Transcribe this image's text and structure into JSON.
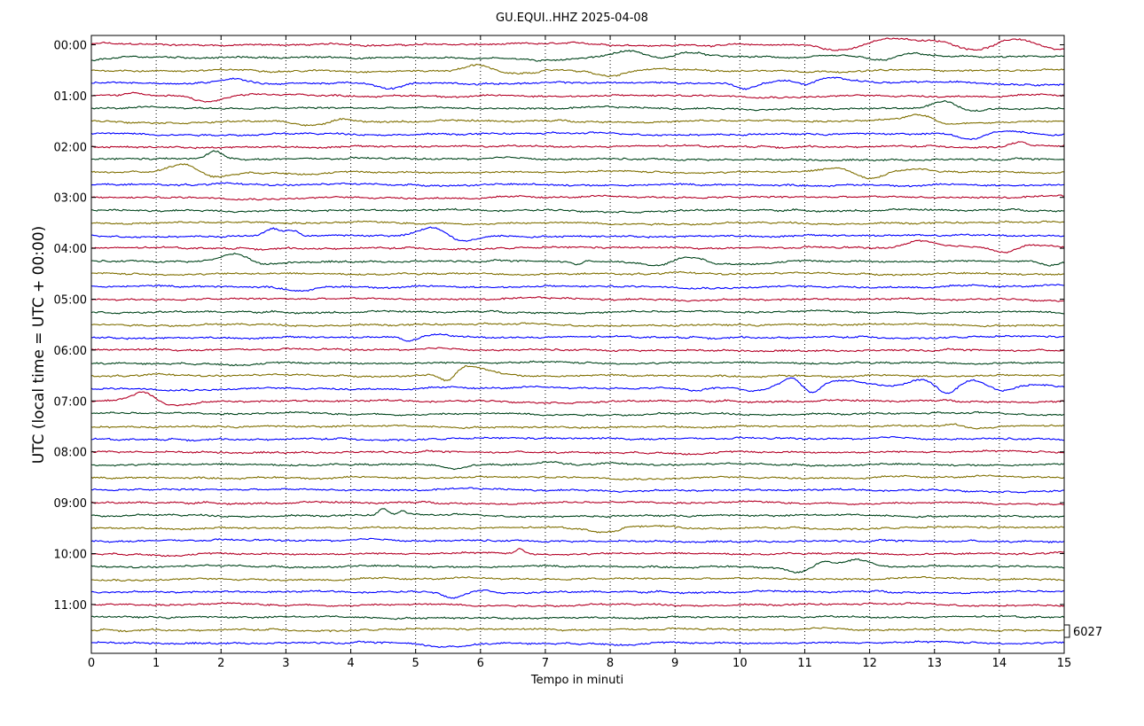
{
  "chart_data": {
    "type": "line",
    "subtype": "helicorder",
    "title": "GU.EQUI..HHZ 2025-04-08",
    "xlabel": "Tempo in minuti",
    "ylabel": "UTC (local time = UTC + 00:00)",
    "xlim": [
      0,
      15
    ],
    "x_ticks": [
      "0",
      "1",
      "2",
      "3",
      "4",
      "5",
      "6",
      "7",
      "8",
      "9",
      "10",
      "11",
      "12",
      "13",
      "14",
      "15"
    ],
    "y_tick_labels": [
      "00:00",
      "01:00",
      "02:00",
      "03:00",
      "04:00",
      "05:00",
      "06:00",
      "07:00",
      "08:00",
      "09:00",
      "10:00",
      "11:00"
    ],
    "scale_label": "6027",
    "traces_per_hour": 4,
    "trace_count": 48,
    "minutes_per_trace": 15,
    "grid": "vertical dotted at each minute",
    "trace_colors": [
      "#b40026",
      "#00441b",
      "#7f6f00",
      "#0000ff"
    ],
    "events": [
      {
        "trace": 0,
        "minute": 0.2,
        "amp": 0.15,
        "width": 0.15
      },
      {
        "trace": 0,
        "minute": 11.6,
        "amp": -0.5,
        "width": 0.4
      },
      {
        "trace": 0,
        "minute": 12.4,
        "amp": 0.6,
        "width": 0.5
      },
      {
        "trace": 0,
        "minute": 13.1,
        "amp": 0.3,
        "width": 0.3
      },
      {
        "trace": 0,
        "minute": 13.7,
        "amp": -0.5,
        "width": 0.5
      },
      {
        "trace": 0,
        "minute": 14.2,
        "amp": 0.7,
        "width": 0.4
      },
      {
        "trace": 0,
        "minute": 14.9,
        "amp": -0.6,
        "width": 0.3
      },
      {
        "trace": 1,
        "minute": 0.0,
        "amp": -0.3,
        "width": 0.3
      },
      {
        "trace": 1,
        "minute": 7.0,
        "amp": -0.3,
        "width": 0.3
      },
      {
        "trace": 1,
        "minute": 8.3,
        "amp": 0.7,
        "width": 0.4
      },
      {
        "trace": 1,
        "minute": 8.8,
        "amp": -0.5,
        "width": 0.3
      },
      {
        "trace": 1,
        "minute": 9.1,
        "amp": 0.6,
        "width": 0.4
      },
      {
        "trace": 1,
        "minute": 12.2,
        "amp": -0.5,
        "width": 0.3
      },
      {
        "trace": 1,
        "minute": 12.6,
        "amp": 0.3,
        "width": 0.4
      },
      {
        "trace": 2,
        "minute": 6.0,
        "amp": 0.6,
        "width": 0.3
      },
      {
        "trace": 2,
        "minute": 6.5,
        "amp": -0.4,
        "width": 0.4
      },
      {
        "trace": 2,
        "minute": 8.0,
        "amp": -0.6,
        "width": 0.3
      },
      {
        "trace": 3,
        "minute": 2.2,
        "amp": 0.5,
        "width": 0.3
      },
      {
        "trace": 3,
        "minute": 4.6,
        "amp": -0.6,
        "width": 0.3
      },
      {
        "trace": 3,
        "minute": 10.1,
        "amp": -0.5,
        "width": 0.2
      },
      {
        "trace": 3,
        "minute": 10.8,
        "amp": 0.3,
        "width": 0.4
      },
      {
        "trace": 3,
        "minute": 11.0,
        "amp": -0.5,
        "width": 0.2
      },
      {
        "trace": 3,
        "minute": 11.5,
        "amp": 0.4,
        "width": 0.5
      },
      {
        "trace": 4,
        "minute": 0.7,
        "amp": 0.3,
        "width": 0.2
      },
      {
        "trace": 4,
        "minute": 1.8,
        "amp": -0.6,
        "width": 0.3
      },
      {
        "trace": 5,
        "minute": 13.2,
        "amp": 0.8,
        "width": 0.3
      },
      {
        "trace": 5,
        "minute": 13.5,
        "amp": -0.5,
        "width": 0.3
      },
      {
        "trace": 6,
        "minute": 3.4,
        "amp": -0.5,
        "width": 0.3
      },
      {
        "trace": 6,
        "minute": 3.8,
        "amp": 0.2,
        "width": 0.4
      },
      {
        "trace": 6,
        "minute": 12.8,
        "amp": 0.7,
        "width": 0.3
      },
      {
        "trace": 6,
        "minute": 13.2,
        "amp": -0.3,
        "width": 0.4
      },
      {
        "trace": 7,
        "minute": 13.6,
        "amp": -0.7,
        "width": 0.3
      },
      {
        "trace": 7,
        "minute": 14.0,
        "amp": 0.3,
        "width": 0.5
      },
      {
        "trace": 8,
        "minute": 14.3,
        "amp": 0.4,
        "width": 0.2
      },
      {
        "trace": 9,
        "minute": 1.9,
        "amp": 0.7,
        "width": 0.15
      },
      {
        "trace": 10,
        "minute": 1.4,
        "amp": 0.8,
        "width": 0.3
      },
      {
        "trace": 10,
        "minute": 1.9,
        "amp": -0.4,
        "width": 0.3
      },
      {
        "trace": 10,
        "minute": 11.5,
        "amp": 0.4,
        "width": 0.3
      },
      {
        "trace": 10,
        "minute": 12.0,
        "amp": -0.6,
        "width": 0.3
      },
      {
        "trace": 10,
        "minute": 12.6,
        "amp": 0.3,
        "width": 0.4
      },
      {
        "trace": 15,
        "minute": 2.8,
        "amp": 0.7,
        "width": 0.15
      },
      {
        "trace": 15,
        "minute": 3.1,
        "amp": 0.5,
        "width": 0.15
      },
      {
        "trace": 15,
        "minute": 5.3,
        "amp": 0.8,
        "width": 0.3
      },
      {
        "trace": 15,
        "minute": 5.7,
        "amp": -0.7,
        "width": 0.3
      },
      {
        "trace": 16,
        "minute": 12.8,
        "amp": 0.7,
        "width": 0.3
      },
      {
        "trace": 16,
        "minute": 14.1,
        "amp": -0.5,
        "width": 0.2
      },
      {
        "trace": 16,
        "minute": 14.5,
        "amp": 0.3,
        "width": 0.4
      },
      {
        "trace": 17,
        "minute": 2.2,
        "amp": 0.7,
        "width": 0.3
      },
      {
        "trace": 17,
        "minute": 2.7,
        "amp": -0.3,
        "width": 0.3
      },
      {
        "trace": 17,
        "minute": 7.5,
        "amp": -0.3,
        "width": 0.1
      },
      {
        "trace": 17,
        "minute": 8.7,
        "amp": -0.4,
        "width": 0.3
      },
      {
        "trace": 17,
        "minute": 9.2,
        "amp": 0.5,
        "width": 0.3
      },
      {
        "trace": 17,
        "minute": 9.8,
        "amp": -0.2,
        "width": 0.4
      },
      {
        "trace": 17,
        "minute": 14.8,
        "amp": -0.5,
        "width": 0.2
      },
      {
        "trace": 19,
        "minute": 3.2,
        "amp": -0.3,
        "width": 0.3
      },
      {
        "trace": 23,
        "minute": 4.9,
        "amp": -0.4,
        "width": 0.15
      },
      {
        "trace": 23,
        "minute": 5.3,
        "amp": 0.2,
        "width": 0.3
      },
      {
        "trace": 26,
        "minute": 5.5,
        "amp": -0.8,
        "width": 0.15
      },
      {
        "trace": 26,
        "minute": 5.8,
        "amp": 0.8,
        "width": 0.3
      },
      {
        "trace": 26,
        "minute": 6.2,
        "amp": 0.3,
        "width": 0.3
      },
      {
        "trace": 27,
        "minute": 9.3,
        "amp": -0.3,
        "width": 0.2
      },
      {
        "trace": 27,
        "minute": 10.2,
        "amp": -0.3,
        "width": 0.2
      },
      {
        "trace": 27,
        "minute": 10.8,
        "amp": 0.9,
        "width": 0.2
      },
      {
        "trace": 27,
        "minute": 11.1,
        "amp": -0.9,
        "width": 0.2
      },
      {
        "trace": 27,
        "minute": 11.6,
        "amp": 0.7,
        "width": 0.6
      },
      {
        "trace": 27,
        "minute": 12.8,
        "amp": 0.8,
        "width": 0.3
      },
      {
        "trace": 27,
        "minute": 13.2,
        "amp": -0.7,
        "width": 0.2
      },
      {
        "trace": 27,
        "minute": 13.6,
        "amp": 0.7,
        "width": 0.3
      },
      {
        "trace": 27,
        "minute": 14.0,
        "amp": -0.5,
        "width": 0.3
      },
      {
        "trace": 27,
        "minute": 14.6,
        "amp": 0.3,
        "width": 0.5
      },
      {
        "trace": 28,
        "minute": 0.8,
        "amp": 0.9,
        "width": 0.25
      },
      {
        "trace": 28,
        "minute": 1.3,
        "amp": -0.3,
        "width": 0.4
      },
      {
        "trace": 30,
        "minute": 13.3,
        "amp": 0.3,
        "width": 0.2
      },
      {
        "trace": 30,
        "minute": 13.6,
        "amp": -0.2,
        "width": 0.3
      },
      {
        "trace": 33,
        "minute": 5.6,
        "amp": -0.3,
        "width": 0.2
      },
      {
        "trace": 33,
        "minute": 7.1,
        "amp": 0.3,
        "width": 0.2
      },
      {
        "trace": 37,
        "minute": 4.5,
        "amp": 0.6,
        "width": 0.1
      },
      {
        "trace": 37,
        "minute": 4.8,
        "amp": 0.4,
        "width": 0.1
      },
      {
        "trace": 38,
        "minute": 7.9,
        "amp": -0.4,
        "width": 0.3
      },
      {
        "trace": 38,
        "minute": 8.6,
        "amp": 0.3,
        "width": 0.4
      },
      {
        "trace": 40,
        "minute": 6.6,
        "amp": 0.4,
        "width": 0.1
      },
      {
        "trace": 41,
        "minute": 10.9,
        "amp": -0.6,
        "width": 0.2
      },
      {
        "trace": 41,
        "minute": 11.3,
        "amp": 0.4,
        "width": 0.15
      },
      {
        "trace": 41,
        "minute": 11.8,
        "amp": 0.7,
        "width": 0.3
      },
      {
        "trace": 43,
        "minute": 5.6,
        "amp": -0.5,
        "width": 0.2
      },
      {
        "trace": 43,
        "minute": 6.0,
        "amp": 0.3,
        "width": 0.3
      },
      {
        "trace": 47,
        "minute": 5.5,
        "amp": -0.4,
        "width": 0.4
      }
    ]
  }
}
